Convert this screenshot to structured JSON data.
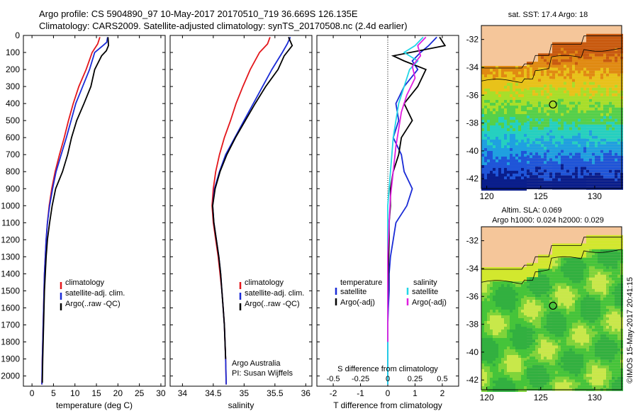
{
  "header": {
    "line1": "Argo profile: CS 5904890_97 10-May-2017 20170510_719 36.669S 126.135E",
    "line2": "Climatology: CARS2009. Satellite-adjusted climatology: synTS_20170508.nc (2.4d earlier)"
  },
  "credit": {
    "institution": "Argo Australia",
    "pi": "PI: Susan Wijffels",
    "stamp": "©IMOS 15-May-2017 20:41:15"
  },
  "colors": {
    "climatology": "#e3161b",
    "satellite": "#1a2bd6",
    "argo": "#000000",
    "sat_salinity": "#22d6e6",
    "argo_adj_salinity": "#e01ee0",
    "land": "#f5c69a"
  },
  "chart_data": [
    {
      "type": "line",
      "id": "temperature",
      "xlabel": "temperature (deg C)",
      "xlim": [
        -2,
        31
      ],
      "xticks": [
        0,
        5,
        10,
        15,
        20,
        25,
        30
      ],
      "ylim": [
        2060,
        0
      ],
      "yticks": [
        0,
        100,
        200,
        300,
        400,
        500,
        600,
        700,
        800,
        900,
        1000,
        1100,
        1200,
        1300,
        1400,
        1500,
        1600,
        1700,
        1800,
        1900,
        2000
      ],
      "legend": [
        "climatology",
        "satellite-adj. clim.",
        "Argo(..raw -QC)"
      ],
      "series": [
        {
          "name": "climatology",
          "color": "#e3161b",
          "x": [
            15.8,
            15.3,
            14.0,
            12.6,
            10.9,
            9.6,
            8.5,
            7.5,
            6.4,
            5.4,
            4.6,
            4.0,
            3.6,
            3.3,
            3.1,
            2.9,
            2.8,
            2.7,
            2.6,
            2.5,
            2.4,
            2.3
          ],
          "y": [
            10,
            50,
            100,
            200,
            300,
            400,
            500,
            600,
            700,
            800,
            900,
            1000,
            1100,
            1200,
            1300,
            1400,
            1500,
            1600,
            1700,
            1800,
            1900,
            2050
          ]
        },
        {
          "name": "satellite-adj. clim.",
          "color": "#1a2bd6",
          "x": [
            17.6,
            17.4,
            16.5,
            14.6,
            13.4,
            11.8,
            10.2,
            9.1,
            8.0,
            6.8,
            5.6,
            4.8,
            4.1,
            3.6,
            3.3,
            3.1,
            2.9,
            2.8,
            2.7,
            2.6,
            2.5,
            2.4,
            2.3
          ],
          "y": [
            10,
            40,
            60,
            100,
            200,
            300,
            400,
            500,
            600,
            700,
            800,
            900,
            1000,
            1100,
            1200,
            1300,
            1400,
            1500,
            1600,
            1700,
            1800,
            1900,
            2050
          ]
        },
        {
          "name": "Argo(..raw -QC)",
          "color": "#000000",
          "x": [
            17.7,
            17.8,
            17.3,
            16.2,
            14.6,
            13.7,
            12.1,
            10.4,
            9.2,
            8.3,
            7.1,
            5.5,
            4.7,
            4.1,
            3.6,
            3.3,
            3.1,
            2.9,
            2.8,
            2.7,
            2.6,
            2.5,
            2.4
          ],
          "y": [
            10,
            60,
            90,
            120,
            200,
            300,
            400,
            500,
            600,
            700,
            800,
            900,
            1000,
            1100,
            1200,
            1300,
            1400,
            1500,
            1600,
            1700,
            1800,
            1900,
            2040
          ]
        }
      ]
    },
    {
      "type": "line",
      "id": "salinity",
      "xlabel": "salinity",
      "xlim": [
        33.8,
        36.1
      ],
      "xticks": [
        34,
        34.5,
        35,
        35.5,
        36
      ],
      "ylim": [
        2060,
        0
      ],
      "legend": [
        "climatology",
        "satellite-adj. clim.",
        "Argo(..raw -QC)"
      ],
      "series": [
        {
          "name": "climatology",
          "color": "#e3161b",
          "x": [
            35.42,
            35.38,
            35.25,
            35.1,
            34.98,
            34.87,
            34.78,
            34.68,
            34.6,
            34.54,
            34.5,
            34.48,
            34.5,
            34.54,
            34.58,
            34.61,
            34.64,
            34.66,
            34.68,
            34.69,
            34.7,
            34.71
          ],
          "y": [
            10,
            50,
            100,
            200,
            300,
            400,
            500,
            600,
            700,
            800,
            900,
            1000,
            1100,
            1200,
            1300,
            1400,
            1500,
            1600,
            1700,
            1800,
            1900,
            2050
          ]
        },
        {
          "name": "satellite-adj. clim.",
          "color": "#1a2bd6",
          "x": [
            35.75,
            35.7,
            35.62,
            35.45,
            35.3,
            35.15,
            35.0,
            34.85,
            34.7,
            34.6,
            34.52,
            34.49,
            34.51,
            34.55,
            34.59,
            34.62,
            34.64,
            34.66,
            34.68,
            34.69,
            34.7,
            34.71
          ],
          "y": [
            10,
            50,
            100,
            200,
            300,
            400,
            500,
            600,
            700,
            800,
            900,
            1000,
            1100,
            1200,
            1300,
            1400,
            1500,
            1600,
            1700,
            1800,
            1900,
            2050
          ]
        },
        {
          "name": "Argo(..raw -QC)",
          "color": "#000000",
          "x": [
            35.72,
            35.78,
            35.65,
            35.55,
            35.35,
            35.18,
            35.02,
            34.86,
            34.72,
            34.61,
            34.53,
            34.49,
            34.51,
            34.55,
            34.59,
            34.62,
            34.64,
            34.66,
            34.68,
            34.69,
            34.7
          ],
          "y": [
            10,
            60,
            120,
            200,
            300,
            400,
            500,
            600,
            700,
            800,
            900,
            1000,
            1100,
            1200,
            1300,
            1400,
            1500,
            1600,
            1700,
            1800,
            1900
          ]
        }
      ]
    },
    {
      "type": "line",
      "id": "difference",
      "xlabel": "T difference from climatology",
      "xlabel_top": "S difference from climatology",
      "xlim": [
        -2.6,
        2.6
      ],
      "xticks": [
        -2,
        -1,
        0,
        1,
        2
      ],
      "xticks_s": [
        "-0.5",
        "-0.25",
        "0",
        "0.25",
        "0.5"
      ],
      "ylim": [
        2060,
        0
      ],
      "legend_left_title": "temperature",
      "legend_right_title": "salinity",
      "legend_left": [
        "satellite",
        "Argo(-adj)"
      ],
      "legend_right": [
        "satellite",
        "Argo(-adj)"
      ],
      "series": [
        {
          "name": "satellite (temperature)",
          "color": "#1a2bd6",
          "x": [
            1.8,
            1.5,
            1.2,
            0.9,
            1.1,
            0.6,
            0.3,
            0.4,
            0.2,
            0.5,
            0.6,
            0.9,
            0.7,
            0.3,
            0.2,
            0.1,
            0.05,
            0.05,
            0.02,
            0.0,
            0.0,
            0.0
          ],
          "y": [
            10,
            60,
            100,
            150,
            200,
            300,
            400,
            500,
            600,
            700,
            800,
            900,
            1000,
            1100,
            1200,
            1300,
            1400,
            1500,
            1600,
            1700,
            1800,
            2050
          ]
        },
        {
          "name": "Argo(-adj) (temperature)",
          "color": "#000000",
          "x": [
            1.9,
            2.1,
            0.2,
            0.6,
            1.4,
            1.1,
            0.6,
            0.9,
            0.5,
            0.4,
            0.2,
            0.1,
            0.1,
            0.05,
            0.05,
            0.02,
            0.0
          ],
          "y": [
            10,
            60,
            120,
            150,
            200,
            300,
            400,
            500,
            600,
            700,
            800,
            900,
            1000,
            1100,
            1200,
            1400,
            1600
          ]
        },
        {
          "name": "satellite (salinity)",
          "color": "#22d6e6",
          "x": [
            1.3,
            1.0,
            0.6,
            1.1,
            0.8,
            0.6,
            0.4,
            0.3,
            0.2,
            0.15,
            0.1,
            0.05,
            0.0,
            0.0,
            0.0,
            0.0,
            0.0,
            0.0,
            0.0,
            0.0,
            0.0,
            0.0
          ],
          "y": [
            10,
            60,
            100,
            150,
            200,
            300,
            400,
            500,
            600,
            700,
            800,
            900,
            1000,
            1100,
            1200,
            1300,
            1400,
            1500,
            1600,
            1700,
            1800,
            2050
          ]
        },
        {
          "name": "Argo(-adj) (salinity)",
          "color": "#e01ee0",
          "x": [
            1.4,
            1.1,
            1.2,
            0.9,
            1.0,
            0.7,
            0.5,
            0.4,
            0.3,
            0.2,
            0.1,
            0.05,
            0.0,
            0.0,
            0.0
          ],
          "y": [
            10,
            60,
            120,
            180,
            250,
            350,
            450,
            550,
            650,
            800,
            950,
            1100,
            1300,
            1500,
            1800
          ]
        }
      ]
    },
    {
      "type": "heatmap",
      "id": "sst_map",
      "title": "sat. SST: 17.4 Argo: 18",
      "xlim": [
        119.5,
        132.5
      ],
      "ylim": [
        -42.7,
        -31.0
      ],
      "xticks": [
        120,
        125,
        130
      ],
      "yticks": [
        -32,
        -34,
        -36,
        -38,
        -40,
        -42
      ],
      "marker": {
        "lon": 126.135,
        "lat": -36.669
      }
    },
    {
      "type": "heatmap",
      "id": "sla_map",
      "title": "Altim. SLA: 0.069",
      "subtitle": "Argo h1000: 0.024 h2000: 0.029",
      "xlim": [
        119.5,
        132.5
      ],
      "ylim": [
        -42.7,
        -31.0
      ],
      "xticks": [
        120,
        125,
        130
      ],
      "yticks": [
        -32,
        -34,
        -36,
        -38,
        -40,
        -42
      ],
      "marker": {
        "lon": 126.135,
        "lat": -36.669
      }
    }
  ]
}
